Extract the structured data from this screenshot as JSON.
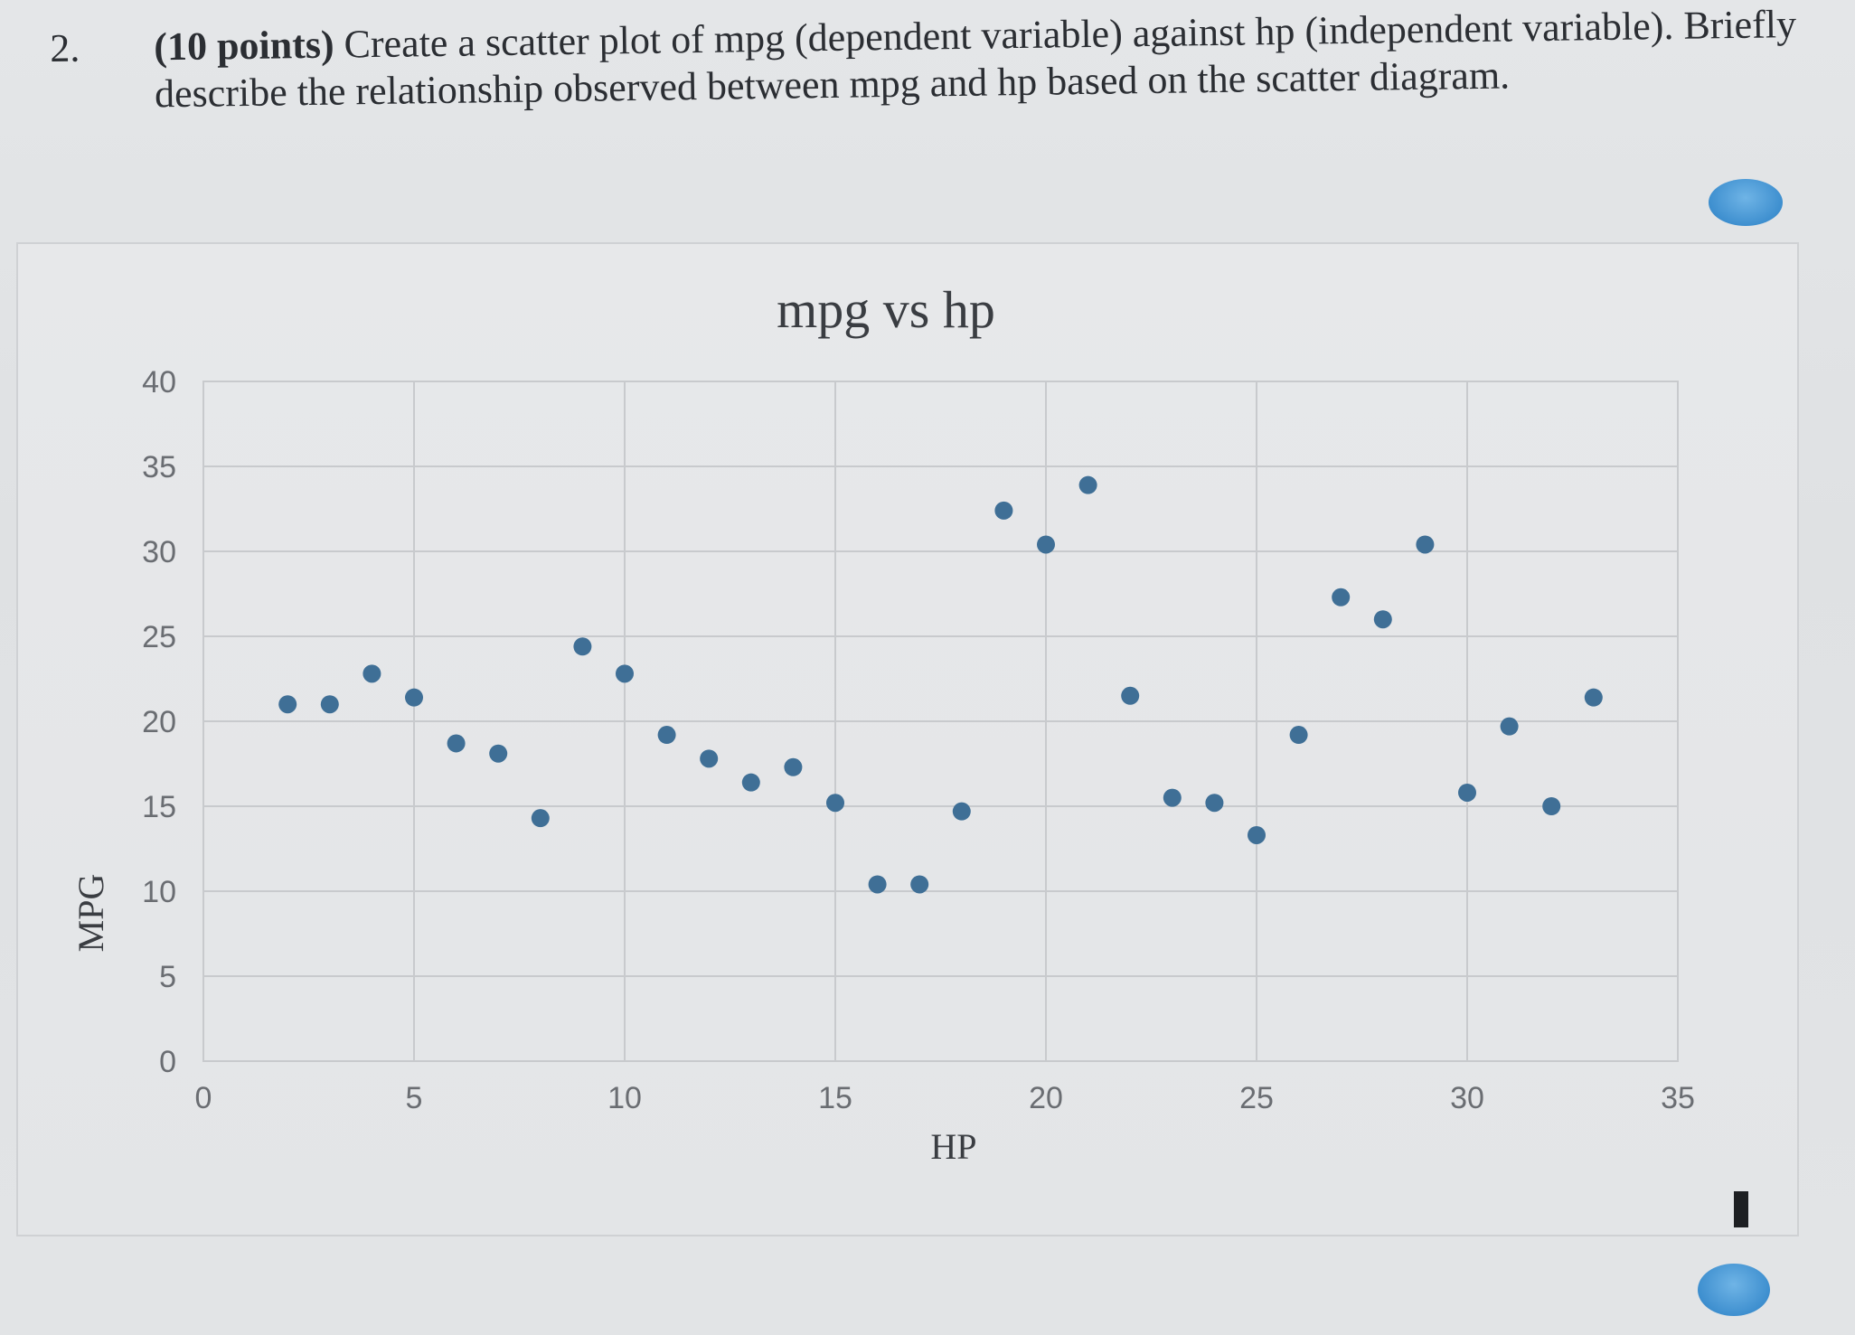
{
  "question": {
    "number": "2.",
    "points": "(10 points)",
    "text": "Create a scatter plot of mpg (dependent variable) against hp (independent variable). Briefly describe the relationship observed between mpg and hp based on the scatter diagram."
  },
  "colors": {
    "point": "#3f6f96",
    "grid": "#c8cacd",
    "handle": "#3e8fcf"
  },
  "chart_data": {
    "type": "scatter",
    "title": "mpg vs hp",
    "xlabel": "HP",
    "ylabel": "MPG",
    "xlim": [
      0,
      35
    ],
    "ylim": [
      0,
      40
    ],
    "xticks": [
      "0",
      "5",
      "10",
      "15",
      "20",
      "25",
      "30",
      "35"
    ],
    "yticks": [
      "0",
      "5",
      "10",
      "15",
      "20",
      "25",
      "30",
      "35",
      "40"
    ],
    "grid": true,
    "legend": "none",
    "points": [
      {
        "x": 2,
        "y": 21
      },
      {
        "x": 3,
        "y": 21
      },
      {
        "x": 4,
        "y": 22.8
      },
      {
        "x": 5,
        "y": 21.4
      },
      {
        "x": 6,
        "y": 18.7
      },
      {
        "x": 7,
        "y": 18.1
      },
      {
        "x": 8,
        "y": 14.3
      },
      {
        "x": 9,
        "y": 24.4
      },
      {
        "x": 10,
        "y": 22.8
      },
      {
        "x": 11,
        "y": 19.2
      },
      {
        "x": 12,
        "y": 17.8
      },
      {
        "x": 13,
        "y": 16.4
      },
      {
        "x": 14,
        "y": 17.3
      },
      {
        "x": 15,
        "y": 15.2
      },
      {
        "x": 16,
        "y": 10.4
      },
      {
        "x": 17,
        "y": 10.4
      },
      {
        "x": 18,
        "y": 14.7
      },
      {
        "x": 19,
        "y": 32.4
      },
      {
        "x": 20,
        "y": 30.4
      },
      {
        "x": 21,
        "y": 33.9
      },
      {
        "x": 22,
        "y": 21.5
      },
      {
        "x": 23,
        "y": 15.5
      },
      {
        "x": 24,
        "y": 15.2
      },
      {
        "x": 25,
        "y": 13.3
      },
      {
        "x": 26,
        "y": 19.2
      },
      {
        "x": 27,
        "y": 27.3
      },
      {
        "x": 28,
        "y": 26
      },
      {
        "x": 29,
        "y": 30.4
      },
      {
        "x": 30,
        "y": 15.8
      },
      {
        "x": 31,
        "y": 19.7
      },
      {
        "x": 32,
        "y": 15
      },
      {
        "x": 33,
        "y": 21.4
      }
    ]
  }
}
